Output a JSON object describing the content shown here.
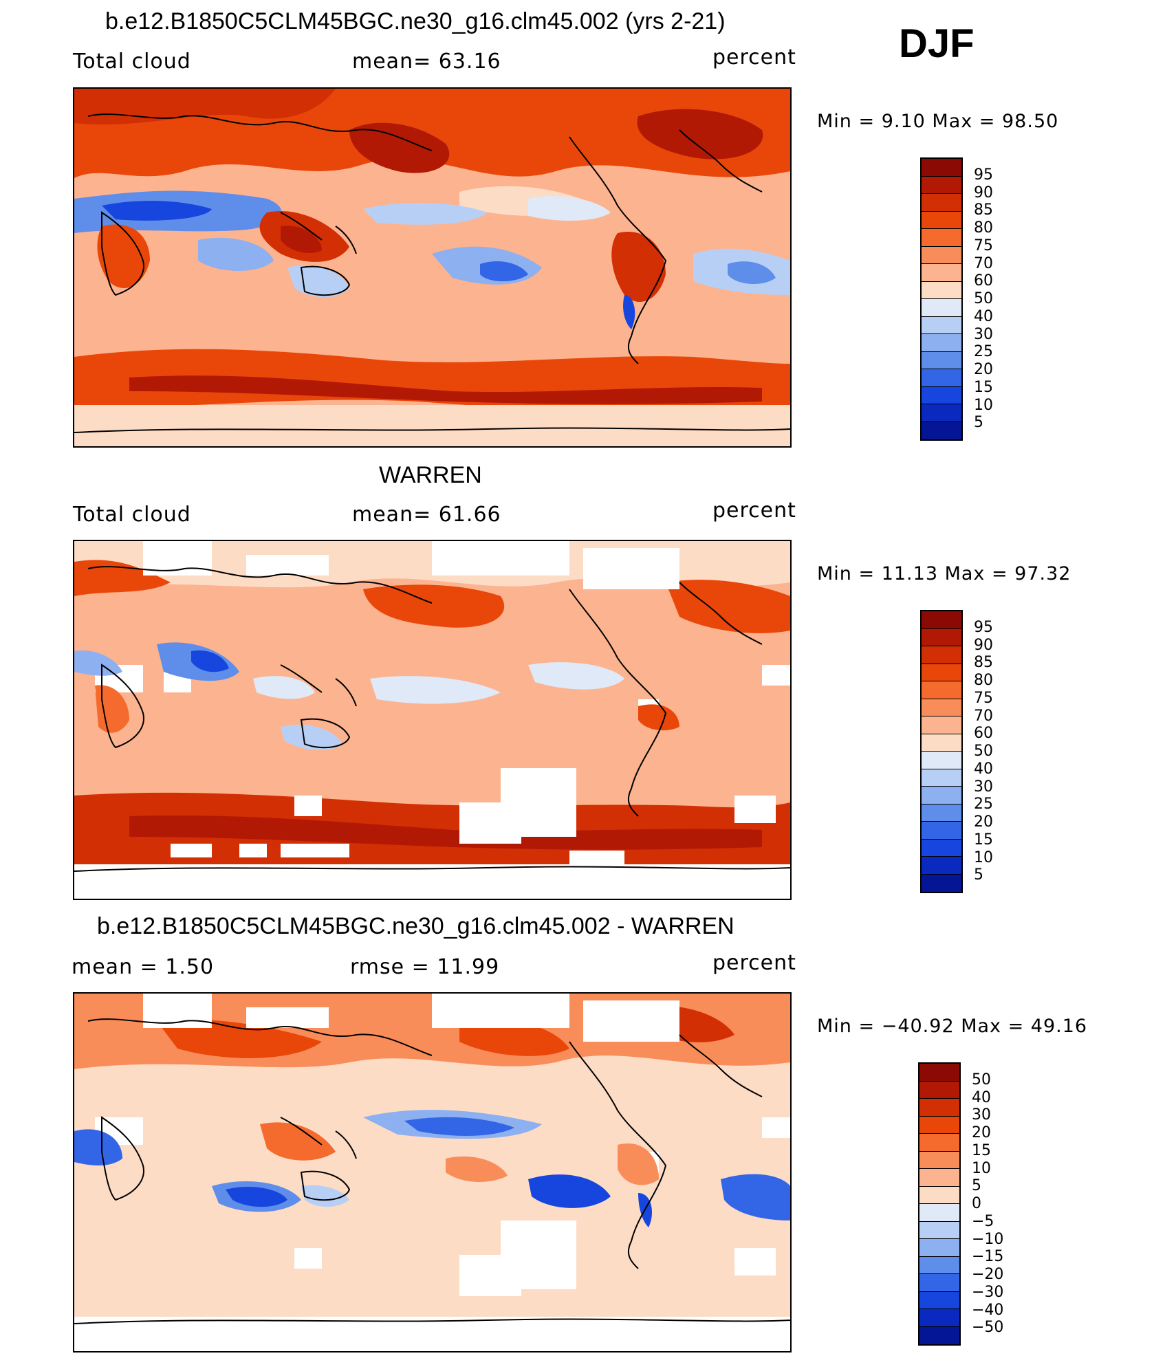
{
  "season": "DJF",
  "panels": [
    {
      "title": "b.e12.B1850C5CLM45BGC.ne30_g16.clm45.002 (yrs 2-21)",
      "left_label": "Total cloud",
      "center_label": "mean=   63.16",
      "right_label": "percent",
      "minmax": "Min =    9.10 Max =   98.50",
      "colorbar": {
        "labels": [
          "95",
          "90",
          "85",
          "80",
          "75",
          "70",
          "60",
          "50",
          "40",
          "30",
          "25",
          "20",
          "15",
          "10",
          "5"
        ],
        "colors": [
          "#8b0a04",
          "#b21905",
          "#d32f05",
          "#e9470a",
          "#f56b2e",
          "#f98d5a",
          "#fcb38f",
          "#fddcc6",
          "#dfe9f8",
          "#b8cff5",
          "#8db0f0",
          "#5f8eea",
          "#3366e6",
          "#1646de",
          "#0a29bf",
          "#041595"
        ]
      }
    },
    {
      "title": "WARREN",
      "left_label": "Total cloud",
      "center_label": "mean=   61.66",
      "right_label": "percent",
      "minmax": "Min =   11.13 Max =   97.32",
      "colorbar": {
        "labels": [
          "95",
          "90",
          "85",
          "80",
          "75",
          "70",
          "60",
          "50",
          "40",
          "30",
          "25",
          "20",
          "15",
          "10",
          "5"
        ],
        "colors": [
          "#8b0a04",
          "#b21905",
          "#d32f05",
          "#e9470a",
          "#f56b2e",
          "#f98d5a",
          "#fcb38f",
          "#fddcc6",
          "#dfe9f8",
          "#b8cff5",
          "#8db0f0",
          "#5f8eea",
          "#3366e6",
          "#1646de",
          "#0a29bf",
          "#041595"
        ]
      }
    },
    {
      "title": "b.e12.B1850C5CLM45BGC.ne30_g16.clm45.002 - WARREN",
      "left_label": "mean =    1.50",
      "center_label": "rmse =   11.99",
      "right_label": "percent",
      "minmax": "Min = −40.92 Max =   49.16",
      "colorbar": {
        "labels": [
          "50",
          "40",
          "30",
          "20",
          "15",
          "10",
          "5",
          "0",
          "−5",
          "−10",
          "−15",
          "−20",
          "−30",
          "−40",
          "−50"
        ],
        "colors": [
          "#8b0a04",
          "#b21905",
          "#d32f05",
          "#e9470a",
          "#f56b2e",
          "#f98d5a",
          "#fcb38f",
          "#fddcc6",
          "#dfe9f8",
          "#b8cff5",
          "#8db0f0",
          "#5f8eea",
          "#3366e6",
          "#1646de",
          "#0a29bf",
          "#041595"
        ]
      }
    }
  ]
}
